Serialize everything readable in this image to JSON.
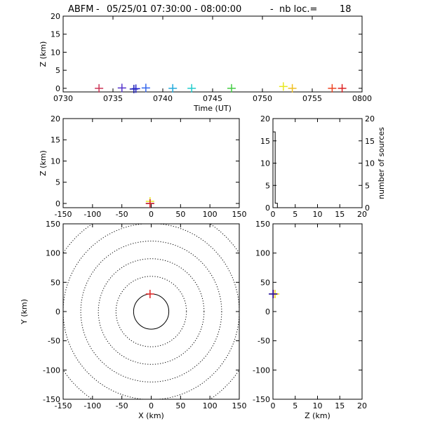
{
  "title": {
    "network": "ABFM",
    "date_range": "05/25/01 07:30:00 - 08:00:00",
    "count_label": "nb loc.=",
    "count": "18"
  },
  "chart_data": [
    {
      "id": "time-height",
      "type": "scatter",
      "xlabel": "Time (UT)",
      "ylabel": "Z (km)",
      "xlim": [
        0,
        30
      ],
      "ylim": [
        -1,
        20
      ],
      "xticks": [
        0,
        5,
        10,
        15,
        20,
        25,
        30
      ],
      "xtick_labels": [
        "0730",
        "0735",
        "0740",
        "0745",
        "0750",
        "0755",
        "0800"
      ],
      "yticks": [
        0,
        5,
        10,
        15,
        20
      ],
      "ytick_labels": [
        "0",
        "5",
        "10",
        "15",
        "20"
      ],
      "points": [
        {
          "x": 3.6,
          "y": 0.0,
          "color": "#cc3355"
        },
        {
          "x": 5.9,
          "y": 0.1,
          "color": "#5533cc"
        },
        {
          "x": 7.1,
          "y": -0.2,
          "color": "#1a1aaa"
        },
        {
          "x": 7.3,
          "y": -0.1,
          "color": "#2222cc"
        },
        {
          "x": 8.3,
          "y": 0.1,
          "color": "#3366ee"
        },
        {
          "x": 11.0,
          "y": 0.0,
          "color": "#22aadd"
        },
        {
          "x": 12.9,
          "y": 0.0,
          "color": "#22cccc"
        },
        {
          "x": 16.9,
          "y": 0.0,
          "color": "#44cc44"
        },
        {
          "x": 22.1,
          "y": 0.5,
          "color": "#e8e820"
        },
        {
          "x": 23.0,
          "y": 0.0,
          "color": "#f0c020"
        },
        {
          "x": 27.0,
          "y": 0.0,
          "color": "#ee4422"
        },
        {
          "x": 28.0,
          "y": 0.0,
          "color": "#dd2222"
        }
      ]
    },
    {
      "id": "x-height",
      "type": "scatter",
      "xlabel": "",
      "ylabel": "Z (km)",
      "xlim": [
        -150,
        150
      ],
      "ylim": [
        -1,
        20
      ],
      "xticks": [
        -150,
        -100,
        -50,
        0,
        50,
        100,
        150
      ],
      "xtick_labels": [
        "-150",
        "-100",
        "-50",
        "0",
        "50",
        "100",
        "150"
      ],
      "yticks": [
        0,
        5,
        10,
        15,
        20
      ],
      "ytick_labels": [
        "0",
        "5",
        "10",
        "15",
        "20"
      ],
      "points": [
        {
          "x": -2,
          "y": 0.0,
          "color": "#1a1aaa"
        },
        {
          "x": -2,
          "y": 0.5,
          "color": "#e8e820"
        },
        {
          "x": -2,
          "y": 0.0,
          "color": "#dd2222"
        }
      ]
    },
    {
      "id": "height-histogram",
      "type": "line",
      "xlabel": "",
      "ylabel": "number of sources",
      "xlim": [
        0,
        20
      ],
      "ylim": [
        0,
        20
      ],
      "xticks": [
        0,
        5,
        10,
        15,
        20
      ],
      "xtick_labels": [
        "0",
        "5",
        "10",
        "15",
        "20"
      ],
      "yticks": [
        0,
        5,
        10,
        15,
        20
      ],
      "ytick_labels": [
        "0",
        "5",
        "10",
        "15",
        "20"
      ],
      "bin_width": 0.5,
      "counts": [
        17,
        1,
        0,
        0,
        0,
        0,
        0,
        0,
        0,
        0,
        0,
        0,
        0,
        0,
        0,
        0,
        0,
        0,
        0,
        0,
        0,
        0,
        0,
        0,
        0,
        0,
        0,
        0,
        0,
        0,
        0,
        0,
        0,
        0,
        0,
        0,
        0,
        0,
        0,
        0
      ]
    },
    {
      "id": "plan-view",
      "type": "scatter",
      "xlabel": "X (km)",
      "ylabel": "Y (km)",
      "xlim": [
        -150,
        150
      ],
      "ylim": [
        -150,
        150
      ],
      "xticks": [
        -150,
        -100,
        -50,
        0,
        50,
        100,
        150
      ],
      "xtick_labels": [
        "-150",
        "-100",
        "-50",
        "0",
        "50",
        "100",
        "150"
      ],
      "yticks": [
        -150,
        -100,
        -50,
        0,
        50,
        100,
        150
      ],
      "ytick_labels": [
        "-150",
        "-100",
        "-50",
        "0",
        "50",
        "100",
        "150"
      ],
      "range_rings_km": [
        30,
        60,
        90,
        120,
        150,
        180
      ],
      "points": [
        {
          "x": -2,
          "y": 30,
          "color": "#dd2222"
        }
      ]
    },
    {
      "id": "height-y",
      "type": "scatter",
      "xlabel": "Z (km)",
      "ylabel": "",
      "xlim": [
        0,
        20
      ],
      "ylim": [
        -150,
        150
      ],
      "xticks": [
        0,
        5,
        10,
        15,
        20
      ],
      "xtick_labels": [
        "0",
        "5",
        "10",
        "15",
        "20"
      ],
      "yticks": [
        -150,
        -100,
        -50,
        0,
        50,
        100,
        150
      ],
      "ytick_labels": [
        "-150",
        "-100",
        "-50",
        "0",
        "50",
        "100",
        "150"
      ],
      "points": [
        {
          "x": 0.5,
          "y": 30,
          "color": "#e8e820"
        },
        {
          "x": 0.1,
          "y": 30,
          "color": "#dd2222"
        },
        {
          "x": 0.0,
          "y": 30,
          "color": "#1a1aaa"
        }
      ]
    }
  ]
}
